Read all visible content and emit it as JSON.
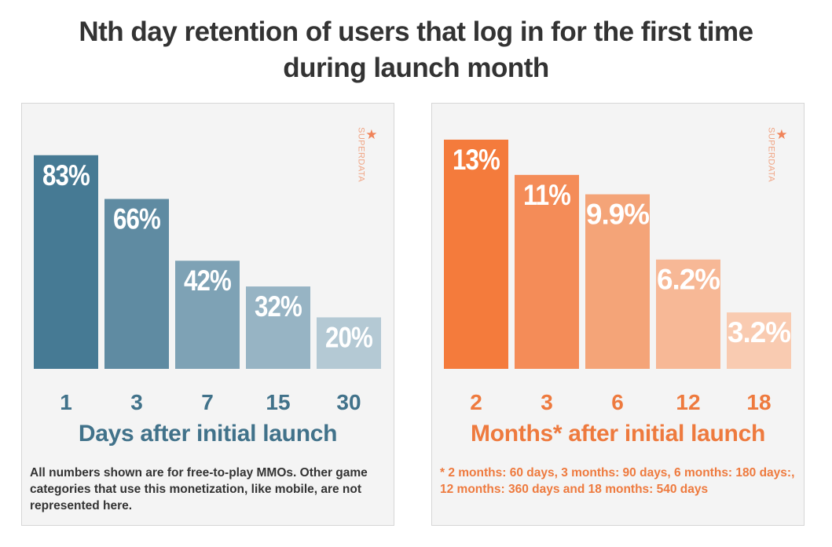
{
  "title": {
    "line1": "Nth day retention of users that log in for the first time",
    "line2": "during launch month"
  },
  "watermark": "SUPERDATA",
  "chart_data": [
    {
      "type": "bar",
      "categories": [
        "1",
        "3",
        "7",
        "15",
        "30"
      ],
      "values": [
        83,
        66,
        42,
        32,
        20
      ],
      "value_labels": [
        "83%",
        "66%",
        "42%",
        "32%",
        "20%"
      ],
      "colors": [
        "#467a94",
        "#5f8ba2",
        "#7ea2b5",
        "#97b4c4",
        "#b4c9d4"
      ],
      "ylim": [
        0,
        100
      ],
      "xlabel": "Days after initial launch",
      "xlabel_color": "#41728a",
      "note": "All numbers shown are for free-to-play MMOs. Other game categories that use this monetization, like mobile, are not represented here."
    },
    {
      "type": "bar",
      "categories": [
        "2",
        "3",
        "6",
        "12",
        "18"
      ],
      "values": [
        13,
        11,
        9.9,
        6.2,
        3.2
      ],
      "value_labels": [
        "13%",
        "11%",
        "9.9%",
        "6.2%",
        "3.2%"
      ],
      "colors": [
        "#f47b3c",
        "#f48c58",
        "#f4a478",
        "#f7b896",
        "#f9cbb1"
      ],
      "ylim": [
        0,
        14.6
      ],
      "xlabel": "Months* after initial launch",
      "xlabel_color": "#ee7a3e",
      "note": "* 2 months: 60 days, 3 months: 90 days, 6 months: 180 days:, 12 months: 360 days and 18 months: 540 days"
    }
  ]
}
